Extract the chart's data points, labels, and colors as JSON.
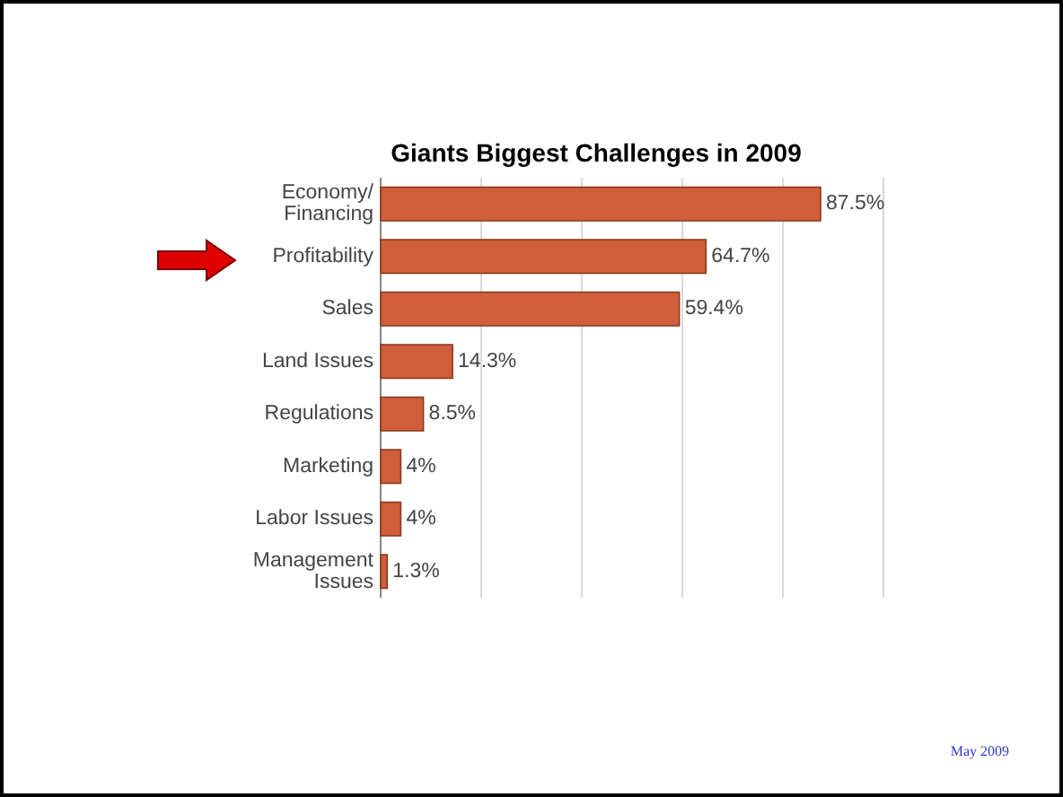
{
  "chart_data": {
    "type": "bar",
    "orientation": "horizontal",
    "title": "Giants Biggest Challenges in 2009",
    "categories": [
      "Economy/\nFinancing",
      "Profitability",
      "Sales",
      "Land Issues",
      "Regulations",
      "Marketing",
      "Labor Issues",
      "Management\nIssues"
    ],
    "values": [
      87.5,
      64.7,
      59.4,
      14.3,
      8.5,
      4,
      4,
      1.3
    ],
    "value_labels": [
      "87.5%",
      "64.7%",
      "59.4%",
      "14.3%",
      "8.5%",
      "4%",
      "4%",
      "1.3%"
    ],
    "color": "#cf5f3a",
    "xlim": [
      0,
      100
    ],
    "xticks": [
      {
        "value": 20,
        "label": null
      },
      {
        "value": 40,
        "label": null
      },
      {
        "value": 60,
        "label": null
      },
      {
        "value": 80,
        "label": null
      },
      {
        "value": 100,
        "label": null
      }
    ],
    "grid": "x",
    "tick_labels": "y",
    "annotations": [
      "May 2009"
    ]
  }
}
